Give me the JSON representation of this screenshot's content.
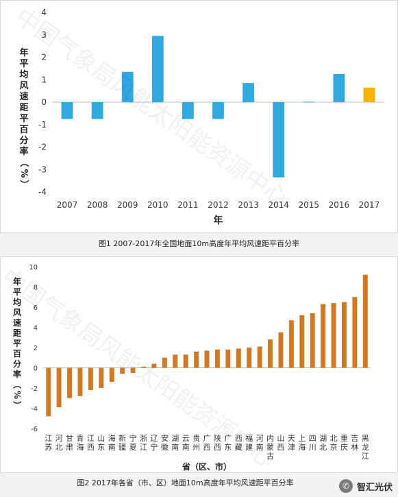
{
  "chart_data": [
    {
      "type": "bar",
      "categories": [
        "2007",
        "2008",
        "2009",
        "2010",
        "2011",
        "2012",
        "2013",
        "2014",
        "2015",
        "2016",
        "2017"
      ],
      "values": [
        -0.75,
        -0.75,
        1.35,
        2.95,
        -0.75,
        -0.75,
        0.85,
        -3.35,
        0.02,
        1.25,
        0.65
      ],
      "highlight": {
        "category": "2017",
        "color": "#f5b400"
      },
      "bar_color": "#2fa9e0",
      "ylim": [
        -4,
        4
      ],
      "yticks": [
        -4,
        -3,
        -2,
        -1,
        0,
        1,
        2,
        3,
        4
      ],
      "xlabel": "年",
      "ylabel": "年平均风速距平百分率（%）",
      "grid": false
    },
    {
      "type": "bar",
      "categories": [
        "江苏",
        "河北",
        "甘肃",
        "青海",
        "江西",
        "山东",
        "海南",
        "新疆",
        "宁夏",
        "浙江",
        "辽宁",
        "安徽",
        "湖南",
        "云南",
        "贵州",
        "广西",
        "陕西",
        "广东",
        "西藏",
        "福建",
        "河南",
        "内蒙古",
        "山西",
        "天津",
        "上海",
        "四川",
        "湖北",
        "北京",
        "重庆",
        "吉林",
        "黑龙江"
      ],
      "values": [
        -4.8,
        -3.9,
        -3.0,
        -2.8,
        -2.2,
        -2.0,
        -1.4,
        -0.6,
        -0.5,
        0.1,
        0.4,
        1.0,
        1.3,
        1.3,
        1.6,
        1.7,
        1.8,
        1.8,
        1.9,
        2.0,
        2.1,
        2.8,
        3.5,
        4.7,
        5.2,
        5.4,
        6.3,
        6.4,
        6.5,
        7.0,
        9.2
      ],
      "bar_color": "#d4781f",
      "ylim": [
        -6,
        10
      ],
      "yticks": [
        -6,
        -4,
        -2,
        0,
        2,
        4,
        6,
        8,
        10
      ],
      "xlabel": "省（区、市）",
      "ylabel": "年平均风速距平百分率（%）",
      "grid": false
    }
  ],
  "captions": {
    "fig1": "图1 2007-2017年全国地面10m高度年平均风速距平百分率",
    "fig2": "图2  2017年各省（市、区）地面10m高度年平均风速距平百分率"
  },
  "watermark": "中国气象局风能太阳能资源中心",
  "brand": {
    "name": "智汇光伏",
    "icon": "wechat-icon"
  }
}
